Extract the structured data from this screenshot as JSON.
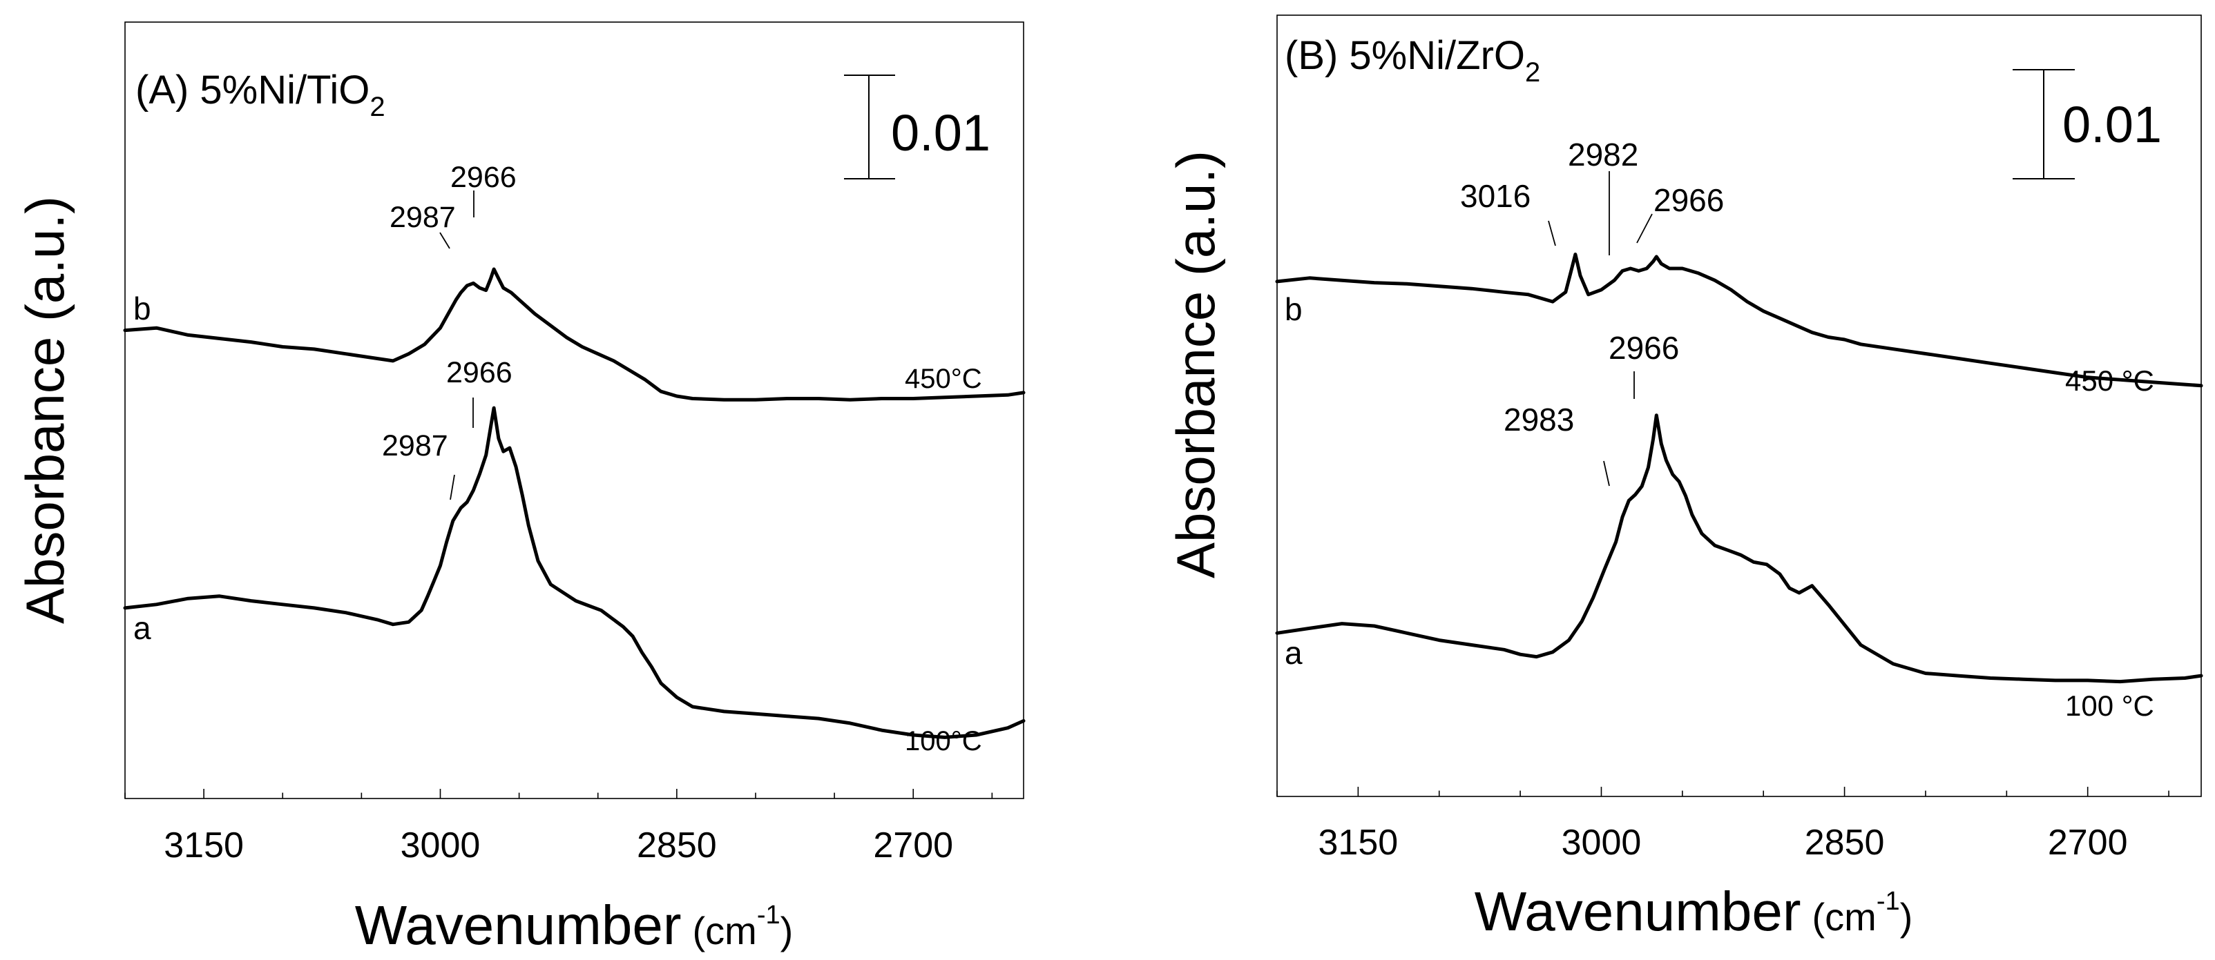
{
  "chart_data": [
    {
      "type": "line",
      "title": "(A) 5%Ni/TiO",
      "title_sub": "2",
      "xlabel": "Wavenumber",
      "xlabel_unit_open": "(cm",
      "xlabel_unit_sup": "-1",
      "xlabel_unit_close": ")",
      "ylabel": "Absorbance (a.u.)",
      "x_range": [
        3200,
        2630
      ],
      "x_reversed": true,
      "y_range": [
        0,
        0.066
      ],
      "x_ticks": [
        "3150",
        "3000",
        "2850",
        "2700"
      ],
      "minor_tick_step": 50,
      "scale_bar": {
        "label": "0.01",
        "value": 0.01
      },
      "series": [
        {
          "name": "a",
          "letter": "a",
          "temperature": "100°C",
          "x": [
            3200,
            3180,
            3160,
            3140,
            3120,
            3100,
            3080,
            3060,
            3040,
            3030,
            3020,
            3012,
            3008,
            3004,
            3000,
            2996,
            2992,
            2987,
            2983,
            2979,
            2975,
            2971,
            2968,
            2966,
            2963,
            2960,
            2956,
            2952,
            2948,
            2944,
            2938,
            2930,
            2922,
            2914,
            2906,
            2898,
            2890,
            2884,
            2878,
            2872,
            2866,
            2860,
            2850,
            2840,
            2820,
            2800,
            2780,
            2760,
            2740,
            2720,
            2700,
            2680,
            2660,
            2640,
            2630
          ],
          "y": [
            0.0162,
            0.0165,
            0.017,
            0.0172,
            0.0168,
            0.0165,
            0.0162,
            0.0158,
            0.0152,
            0.0148,
            0.015,
            0.016,
            0.0172,
            0.0185,
            0.0198,
            0.0218,
            0.0236,
            0.0247,
            0.0252,
            0.0262,
            0.0276,
            0.0292,
            0.0316,
            0.0332,
            0.0306,
            0.0295,
            0.0298,
            0.0282,
            0.0258,
            0.0232,
            0.0202,
            0.0182,
            0.0175,
            0.0168,
            0.0164,
            0.016,
            0.0152,
            0.0146,
            0.0138,
            0.0124,
            0.0112,
            0.0098,
            0.0086,
            0.0078,
            0.0074,
            0.0072,
            0.007,
            0.0068,
            0.0064,
            0.0058,
            0.0054,
            0.0052,
            0.0054,
            0.006,
            0.0066
          ]
        },
        {
          "name": "b",
          "letter": "b",
          "temperature": "450°C",
          "x": [
            3200,
            3180,
            3160,
            3140,
            3120,
            3100,
            3080,
            3060,
            3040,
            3030,
            3020,
            3010,
            3000,
            2995,
            2990,
            2987,
            2983,
            2979,
            2975,
            2971,
            2968,
            2966,
            2963,
            2960,
            2955,
            2950,
            2940,
            2930,
            2920,
            2910,
            2900,
            2890,
            2880,
            2870,
            2860,
            2850,
            2840,
            2820,
            2800,
            2780,
            2760,
            2740,
            2720,
            2700,
            2680,
            2660,
            2640,
            2630
          ],
          "y": [
            0.0398,
            0.04,
            0.0394,
            0.0391,
            0.0388,
            0.0384,
            0.0382,
            0.0378,
            0.0374,
            0.0372,
            0.0378,
            0.0386,
            0.04,
            0.0412,
            0.0424,
            0.043,
            0.0436,
            0.0438,
            0.0434,
            0.0432,
            0.0442,
            0.045,
            0.0442,
            0.0434,
            0.043,
            0.0424,
            0.0412,
            0.0402,
            0.0392,
            0.0384,
            0.0378,
            0.0372,
            0.0364,
            0.0356,
            0.0346,
            0.0342,
            0.034,
            0.0339,
            0.0339,
            0.034,
            0.034,
            0.0339,
            0.034,
            0.034,
            0.0341,
            0.0342,
            0.0343,
            0.0345
          ]
        }
      ],
      "annotations": [
        {
          "label": "2987",
          "series": "a",
          "x": 2987
        },
        {
          "label": "2966",
          "series": "a",
          "x": 2966
        },
        {
          "label": "2987",
          "series": "b",
          "x": 2987
        },
        {
          "label": "2966",
          "series": "b",
          "x": 2966
        }
      ]
    },
    {
      "type": "line",
      "title": "(B) 5%Ni/ZrO",
      "title_sub": "2",
      "xlabel": "Wavenumber",
      "xlabel_unit_open": "(cm",
      "xlabel_unit_sup": "-1",
      "xlabel_unit_close": ")",
      "ylabel": "Absorbance (a.u.)",
      "x_range": [
        3200,
        2630
      ],
      "x_reversed": true,
      "y_range": [
        0,
        0.066
      ],
      "x_ticks": [
        "3150",
        "3000",
        "2850",
        "2700"
      ],
      "minor_tick_step": 50,
      "scale_bar": {
        "label": "0.01",
        "value": 0.01
      },
      "series": [
        {
          "name": "a",
          "letter": "a",
          "temperature": "100 °C",
          "x": [
            3200,
            3180,
            3160,
            3140,
            3120,
            3100,
            3080,
            3060,
            3050,
            3040,
            3030,
            3020,
            3012,
            3005,
            2998,
            2991,
            2987,
            2983,
            2979,
            2975,
            2971,
            2968,
            2966,
            2963,
            2960,
            2956,
            2952,
            2948,
            2944,
            2938,
            2930,
            2922,
            2914,
            2906,
            2898,
            2890,
            2884,
            2878,
            2870,
            2860,
            2850,
            2840,
            2820,
            2800,
            2780,
            2760,
            2740,
            2720,
            2700,
            2680,
            2660,
            2640,
            2630
          ],
          "y": [
            0.0138,
            0.0142,
            0.0146,
            0.0144,
            0.0138,
            0.0132,
            0.0128,
            0.0124,
            0.012,
            0.0118,
            0.0122,
            0.0132,
            0.0148,
            0.0168,
            0.0192,
            0.0215,
            0.0236,
            0.025,
            0.0255,
            0.0262,
            0.0278,
            0.0302,
            0.0322,
            0.0298,
            0.0284,
            0.0272,
            0.0266,
            0.0254,
            0.0238,
            0.0222,
            0.0212,
            0.0208,
            0.0204,
            0.0198,
            0.0196,
            0.0188,
            0.0176,
            0.0172,
            0.0178,
            0.0162,
            0.0145,
            0.0128,
            0.0112,
            0.0104,
            0.0102,
            0.01,
            0.0099,
            0.0098,
            0.0098,
            0.0097,
            0.0099,
            0.01,
            0.0102
          ]
        },
        {
          "name": "b",
          "letter": "b",
          "temperature": "450 °C",
          "x": [
            3200,
            3180,
            3160,
            3140,
            3120,
            3100,
            3080,
            3060,
            3045,
            3030,
            3022,
            3019,
            3016,
            3013,
            3008,
            3000,
            2992,
            2987,
            2982,
            2977,
            2972,
            2968,
            2966,
            2963,
            2958,
            2950,
            2940,
            2930,
            2920,
            2910,
            2900,
            2890,
            2880,
            2870,
            2860,
            2850,
            2840,
            2820,
            2800,
            2780,
            2760,
            2740,
            2720,
            2700,
            2680,
            2660,
            2640,
            2630
          ],
          "y": [
            0.0435,
            0.0438,
            0.0436,
            0.0434,
            0.0433,
            0.0431,
            0.0429,
            0.0426,
            0.0424,
            0.0418,
            0.0426,
            0.0442,
            0.0458,
            0.044,
            0.0424,
            0.0428,
            0.0436,
            0.0444,
            0.0446,
            0.0444,
            0.0446,
            0.0452,
            0.0456,
            0.045,
            0.0446,
            0.0446,
            0.0442,
            0.0436,
            0.0428,
            0.0418,
            0.041,
            0.0404,
            0.0398,
            0.0392,
            0.0388,
            0.0386,
            0.0382,
            0.0378,
            0.0374,
            0.037,
            0.0366,
            0.0362,
            0.0358,
            0.0354,
            0.0352,
            0.035,
            0.0348,
            0.0347
          ]
        }
      ],
      "annotations": [
        {
          "label": "2983",
          "series": "a",
          "x": 2983
        },
        {
          "label": "2966",
          "series": "a",
          "x": 2966
        },
        {
          "label": "3016",
          "series": "b",
          "x": 3016
        },
        {
          "label": "2982",
          "series": "b",
          "x": 2982
        },
        {
          "label": "2966",
          "series": "b",
          "x": 2966
        }
      ]
    }
  ]
}
